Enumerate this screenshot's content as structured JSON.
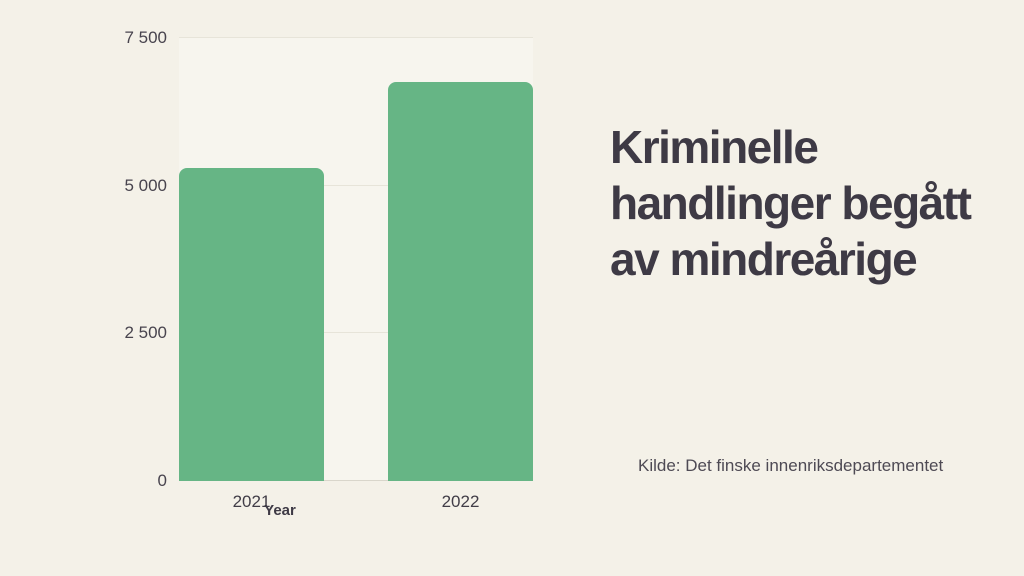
{
  "slide": {
    "background_color": "#f4f1e8",
    "accent_color": "#66b585",
    "text_color": "#3e3a45"
  },
  "title": {
    "text": "Kriminelle handlinger begått av mindreårige"
  },
  "source": {
    "text": "Kilde: Det finske innenriksdepartementet"
  },
  "chart_data": {
    "type": "bar",
    "categories": [
      "2021",
      "2022"
    ],
    "values": [
      5300,
      6750
    ],
    "title": "",
    "xlabel": "Year",
    "ylabel": "",
    "ylim": [
      0,
      7500
    ],
    "yticks": [
      {
        "value": 0,
        "label": "0"
      },
      {
        "value": 2500,
        "label": "2 500"
      },
      {
        "value": 5000,
        "label": "5 000"
      },
      {
        "value": 7500,
        "label": "7 500"
      }
    ],
    "grid": true,
    "legend": false,
    "bar_color": "#66b585",
    "gridline_color": "#e7e4d9",
    "tick_label_color": "#48444e"
  }
}
